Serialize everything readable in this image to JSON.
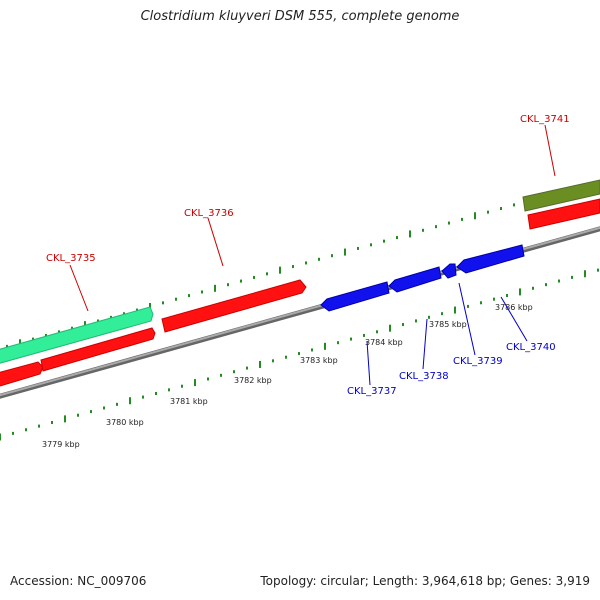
{
  "title": "Clostridium kluyveri DSM 555, complete genome",
  "accession": "Accession: NC_009706",
  "stats": "Topology: circular; Length: 3,964,618 bp; Genes: 3,919",
  "colors": {
    "cds_green": "#33ee99",
    "cds_red": "#ff1111",
    "cds_blue": "#1111ee",
    "olive": "#6b8e23",
    "backbone": "#888888",
    "tick": "#228b22",
    "label_red": "#cc0000",
    "label_blue": "#0000cc"
  },
  "ticks": [
    "3779 kbp",
    "3780 kbp",
    "3781 kbp",
    "3782 kbp",
    "3783 kbp",
    "3784 kbp",
    "3785 kbp",
    "3786 kbp"
  ],
  "genes": [
    {
      "name": "CKL_3735"
    },
    {
      "name": "CKL_3736"
    },
    {
      "name": "CKL_3741"
    },
    {
      "name": "CKL_3737"
    },
    {
      "name": "CKL_3738"
    },
    {
      "name": "CKL_3739"
    },
    {
      "name": "CKL_3740"
    }
  ]
}
